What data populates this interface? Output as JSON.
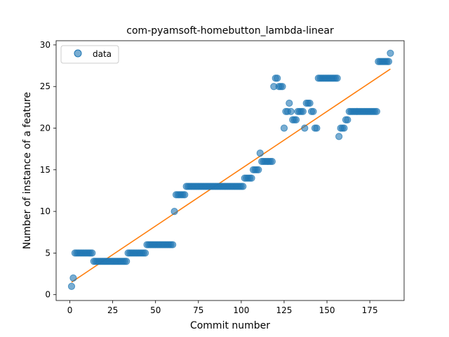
{
  "chart_data": {
    "type": "scatter",
    "title": "com-pyamsoft-homebutton_lambda-linear",
    "xlabel": "Commit number",
    "ylabel": "Number of instance of a feature",
    "xlim": [
      -8,
      195
    ],
    "ylim": [
      -0.7,
      30.5
    ],
    "xticks": [
      0,
      25,
      50,
      75,
      100,
      125,
      150,
      175
    ],
    "yticks": [
      0,
      5,
      10,
      15,
      20,
      25,
      30
    ],
    "grid": false,
    "legend": {
      "position": "top-left",
      "entries": [
        "data"
      ]
    },
    "colors": {
      "data": "#1f77b4",
      "fit": "#ff7f0e"
    },
    "series": [
      {
        "name": "data",
        "kind": "scatter",
        "points": [
          [
            1,
            1
          ],
          [
            2,
            2
          ],
          [
            3,
            5
          ],
          [
            4,
            5
          ],
          [
            5,
            5
          ],
          [
            6,
            5
          ],
          [
            7,
            5
          ],
          [
            8,
            5
          ],
          [
            9,
            5
          ],
          [
            10,
            5
          ],
          [
            11,
            5
          ],
          [
            12,
            5
          ],
          [
            13,
            5
          ],
          [
            14,
            4
          ],
          [
            15,
            4
          ],
          [
            16,
            4
          ],
          [
            17,
            4
          ],
          [
            18,
            4
          ],
          [
            19,
            4
          ],
          [
            20,
            4
          ],
          [
            21,
            4
          ],
          [
            22,
            4
          ],
          [
            23,
            4
          ],
          [
            24,
            4
          ],
          [
            25,
            4
          ],
          [
            26,
            4
          ],
          [
            27,
            4
          ],
          [
            28,
            4
          ],
          [
            29,
            4
          ],
          [
            30,
            4
          ],
          [
            31,
            4
          ],
          [
            32,
            4
          ],
          [
            33,
            4
          ],
          [
            34,
            5
          ],
          [
            35,
            5
          ],
          [
            36,
            5
          ],
          [
            37,
            5
          ],
          [
            38,
            5
          ],
          [
            39,
            5
          ],
          [
            40,
            5
          ],
          [
            41,
            5
          ],
          [
            42,
            5
          ],
          [
            43,
            5
          ],
          [
            44,
            5
          ],
          [
            45,
            6
          ],
          [
            46,
            6
          ],
          [
            47,
            6
          ],
          [
            48,
            6
          ],
          [
            49,
            6
          ],
          [
            50,
            6
          ],
          [
            51,
            6
          ],
          [
            52,
            6
          ],
          [
            53,
            6
          ],
          [
            54,
            6
          ],
          [
            55,
            6
          ],
          [
            56,
            6
          ],
          [
            57,
            6
          ],
          [
            58,
            6
          ],
          [
            59,
            6
          ],
          [
            60,
            6
          ],
          [
            61,
            10
          ],
          [
            62,
            12
          ],
          [
            63,
            12
          ],
          [
            64,
            12
          ],
          [
            65,
            12
          ],
          [
            66,
            12
          ],
          [
            67,
            12
          ],
          [
            68,
            13
          ],
          [
            69,
            13
          ],
          [
            70,
            13
          ],
          [
            71,
            13
          ],
          [
            72,
            13
          ],
          [
            73,
            13
          ],
          [
            74,
            13
          ],
          [
            75,
            13
          ],
          [
            76,
            13
          ],
          [
            77,
            13
          ],
          [
            78,
            13
          ],
          [
            79,
            13
          ],
          [
            80,
            13
          ],
          [
            81,
            13
          ],
          [
            82,
            13
          ],
          [
            83,
            13
          ],
          [
            84,
            13
          ],
          [
            85,
            13
          ],
          [
            86,
            13
          ],
          [
            87,
            13
          ],
          [
            88,
            13
          ],
          [
            89,
            13
          ],
          [
            90,
            13
          ],
          [
            91,
            13
          ],
          [
            92,
            13
          ],
          [
            93,
            13
          ],
          [
            94,
            13
          ],
          [
            95,
            13
          ],
          [
            96,
            13
          ],
          [
            97,
            13
          ],
          [
            98,
            13
          ],
          [
            99,
            13
          ],
          [
            100,
            13
          ],
          [
            101,
            13
          ],
          [
            102,
            14
          ],
          [
            103,
            14
          ],
          [
            104,
            14
          ],
          [
            105,
            14
          ],
          [
            106,
            14
          ],
          [
            107,
            15
          ],
          [
            108,
            15
          ],
          [
            109,
            15
          ],
          [
            110,
            15
          ],
          [
            111,
            17
          ],
          [
            112,
            16
          ],
          [
            113,
            16
          ],
          [
            114,
            16
          ],
          [
            115,
            16
          ],
          [
            116,
            16
          ],
          [
            117,
            16
          ],
          [
            118,
            16
          ],
          [
            119,
            25
          ],
          [
            120,
            26
          ],
          [
            121,
            26
          ],
          [
            122,
            25
          ],
          [
            123,
            25
          ],
          [
            124,
            25
          ],
          [
            125,
            20
          ],
          [
            126,
            22
          ],
          [
            127,
            22
          ],
          [
            128,
            23
          ],
          [
            129,
            22
          ],
          [
            130,
            21
          ],
          [
            131,
            21
          ],
          [
            132,
            21
          ],
          [
            133,
            22
          ],
          [
            134,
            22
          ],
          [
            135,
            22
          ],
          [
            136,
            22
          ],
          [
            137,
            20
          ],
          [
            138,
            23
          ],
          [
            139,
            23
          ],
          [
            140,
            23
          ],
          [
            141,
            22
          ],
          [
            142,
            22
          ],
          [
            143,
            20
          ],
          [
            144,
            20
          ],
          [
            145,
            26
          ],
          [
            146,
            26
          ],
          [
            147,
            26
          ],
          [
            148,
            26
          ],
          [
            149,
            26
          ],
          [
            150,
            26
          ],
          [
            151,
            26
          ],
          [
            152,
            26
          ],
          [
            153,
            26
          ],
          [
            154,
            26
          ],
          [
            155,
            26
          ],
          [
            156,
            26
          ],
          [
            157,
            19
          ],
          [
            158,
            20
          ],
          [
            159,
            20
          ],
          [
            160,
            20
          ],
          [
            161,
            21
          ],
          [
            162,
            21
          ],
          [
            163,
            22
          ],
          [
            164,
            22
          ],
          [
            165,
            22
          ],
          [
            166,
            22
          ],
          [
            167,
            22
          ],
          [
            168,
            22
          ],
          [
            169,
            22
          ],
          [
            170,
            22
          ],
          [
            171,
            22
          ],
          [
            172,
            22
          ],
          [
            173,
            22
          ],
          [
            174,
            22
          ],
          [
            175,
            22
          ],
          [
            176,
            22
          ],
          [
            177,
            22
          ],
          [
            178,
            22
          ],
          [
            179,
            22
          ],
          [
            180,
            28
          ],
          [
            181,
            28
          ],
          [
            182,
            28
          ],
          [
            183,
            28
          ],
          [
            184,
            28
          ],
          [
            185,
            28
          ],
          [
            186,
            28
          ],
          [
            187,
            29
          ]
        ]
      },
      {
        "kind": "line",
        "points": [
          [
            1,
            1.5
          ],
          [
            187,
            27.1
          ]
        ]
      }
    ]
  }
}
